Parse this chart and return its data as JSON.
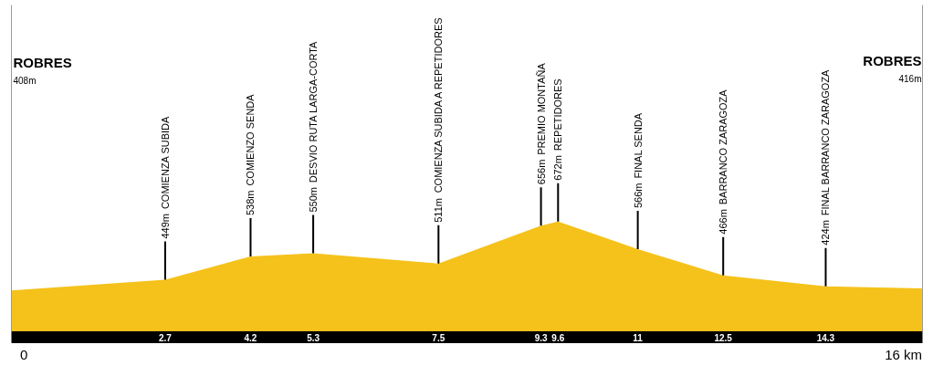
{
  "chart_data": {
    "type": "area",
    "x": [
      0,
      2.7,
      4.2,
      5.3,
      7.5,
      9.3,
      9.6,
      11,
      12.5,
      14.3,
      16
    ],
    "values": [
      408,
      449,
      538,
      550,
      511,
      656,
      672,
      566,
      466,
      424,
      416
    ],
    "value_labels": [
      null,
      "449m",
      "538m",
      "550m",
      "511m",
      "656m",
      "672m",
      "566m",
      "466m",
      "424m",
      null
    ],
    "color": "#f5c21b",
    "xlim": [
      0,
      16
    ],
    "xticks": [
      2.7,
      4.2,
      5.3,
      7.5,
      9.3,
      9.6,
      11,
      12.5,
      14.3
    ],
    "ylim": [
      250,
      1500
    ],
    "tick_labels": "x",
    "grid": false,
    "annotations": [
      "ROBRES",
      "COMIENZA SUBIDA",
      "COMIENZO SENDA",
      "DESVIO RUTA LARGA-CORTA",
      "COMIENZA SUBIDA A REPETIDORES",
      "PREMIO MONTAÑA",
      "REPETIDORES",
      "FINAL SENDA",
      "BARRANCO ZARAGOZA",
      "FINAL BARRANCO ZARAGOZA",
      "ROBRES",
      "408m",
      "416m",
      "0",
      "16 km"
    ]
  }
}
